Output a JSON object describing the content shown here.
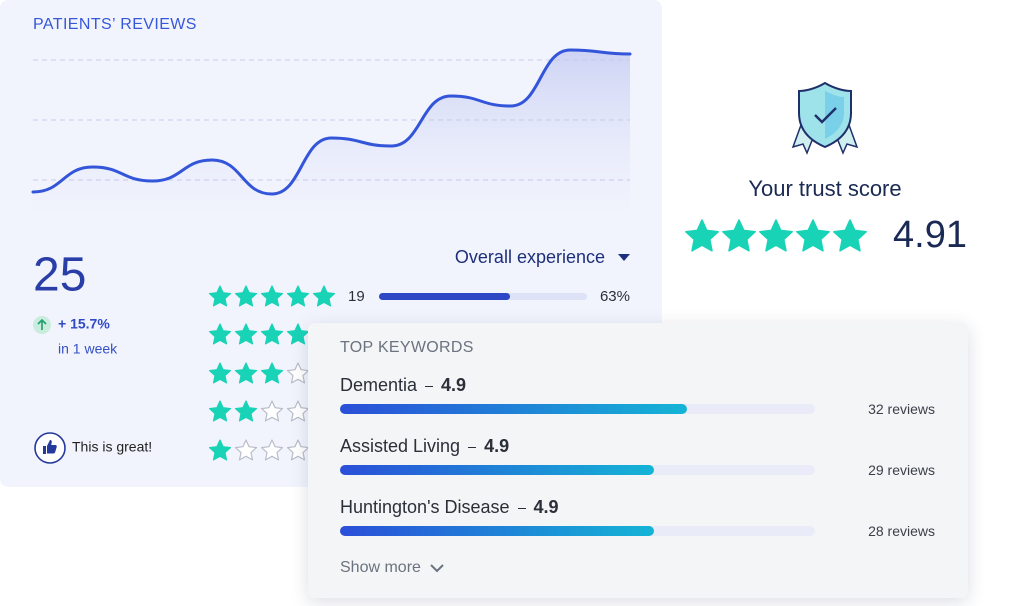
{
  "patients_reviews": {
    "title": "PATIENTS’ REVIEWS",
    "trend": {
      "type": "line",
      "values": [
        9,
        21.5,
        14.5,
        25,
        8,
        36,
        32,
        57,
        52,
        80,
        78
      ],
      "ylim": [
        0,
        100
      ],
      "color": "#3355d9"
    },
    "total": 25,
    "change": "+ 15.7%",
    "period": "in 1 week",
    "feedback_button": "This is great!",
    "filter": "Overall experience",
    "rating_rows": [
      {
        "stars": 5,
        "count": 19,
        "percent": 63,
        "percent_label": "63%"
      },
      {
        "stars": 4
      },
      {
        "stars": 3
      },
      {
        "stars": 2
      },
      {
        "stars": 1
      }
    ]
  },
  "trust": {
    "title": "Your trust score",
    "stars": 5,
    "score": 4.91
  },
  "keywords": {
    "title": "TOP KEYWORDS",
    "items": [
      {
        "name": "Dementia",
        "score": 4.9,
        "bar_percent": 73,
        "reviews": "32 reviews"
      },
      {
        "name": "Assisted Living",
        "score": 4.9,
        "bar_percent": 66,
        "reviews": "29 reviews"
      },
      {
        "name": "Huntington's Disease",
        "score": 4.9,
        "bar_percent": 66,
        "reviews": "28 reviews"
      }
    ],
    "show_more": "Show more"
  }
}
